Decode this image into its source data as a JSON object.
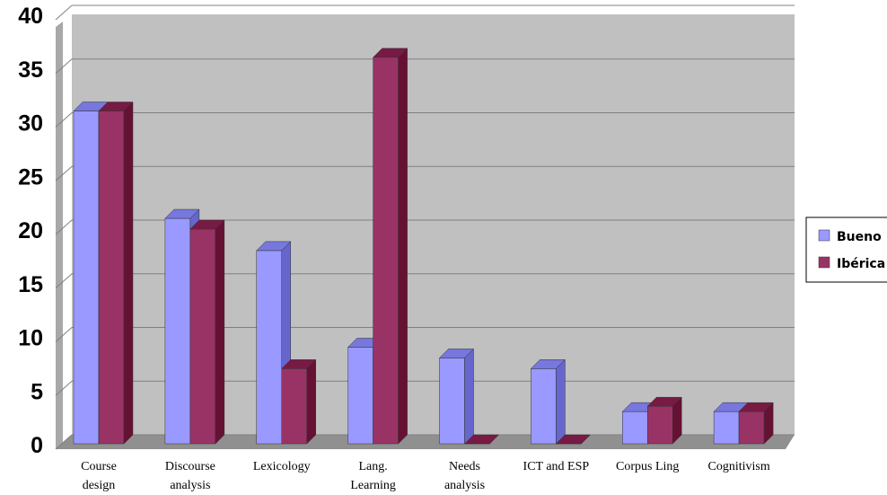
{
  "chart_data": {
    "type": "bar",
    "categories": [
      [
        "Course",
        "design"
      ],
      [
        "Discourse",
        "analysis"
      ],
      [
        "Lexicology"
      ],
      [
        "Lang.",
        "Learning"
      ],
      [
        "Needs",
        "analysis"
      ],
      [
        "ICT and ESP"
      ],
      [
        "Corpus Ling"
      ],
      [
        "Cognitivism"
      ]
    ],
    "series": [
      {
        "name": "Bueno",
        "values": [
          31,
          21,
          18,
          9,
          8,
          7,
          3,
          3
        ],
        "color": "#9999ff",
        "side": "#6666cc",
        "top": "#7777dd"
      },
      {
        "name": "Ibérica",
        "values": [
          31,
          20,
          7,
          36,
          0,
          0,
          3.5,
          3
        ],
        "color": "#993366",
        "side": "#661133",
        "top": "#771a44"
      }
    ],
    "ylim": [
      0,
      40
    ],
    "yticks": [
      0,
      5,
      10,
      15,
      20,
      25,
      30,
      35,
      40
    ],
    "grid": true,
    "plot_background": "#c0c0c0",
    "legend_position": "right"
  }
}
